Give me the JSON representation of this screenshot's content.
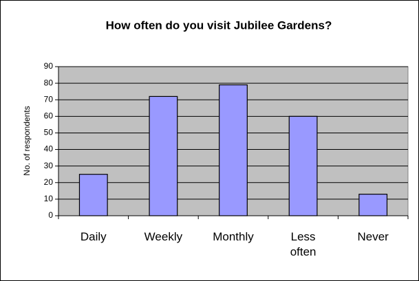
{
  "chart_data": {
    "type": "bar",
    "title": "How often do you visit Jubilee Gardens?",
    "y_label": "No. of respondents",
    "categories": [
      "Daily",
      "Weekly",
      "Monthly",
      "Less often",
      "Never"
    ],
    "values": [
      25,
      72,
      79,
      60,
      13
    ],
    "color": "#9999ff",
    "ylim": [
      0,
      90
    ],
    "yticks": [
      0,
      10,
      20,
      30,
      40,
      50,
      60,
      70,
      80,
      90
    ],
    "grid": true
  }
}
